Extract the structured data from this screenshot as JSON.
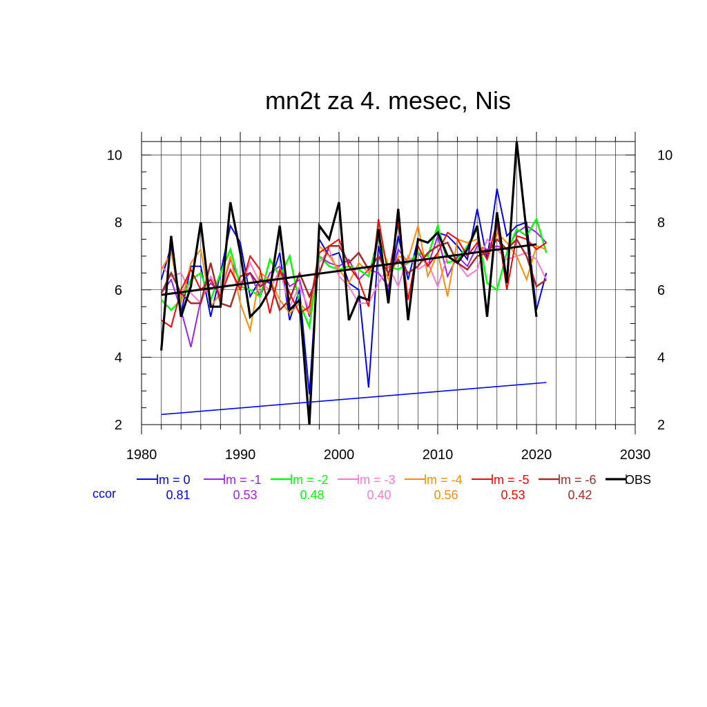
{
  "chart_data": {
    "type": "line",
    "title": "mn2t za 4. mesec, Nis",
    "xlabel": "",
    "ylabel": "",
    "xlim": [
      1980,
      2030
    ],
    "ylim": [
      2,
      10.4
    ],
    "x_ticks": [
      "1980",
      "1990",
      "2000",
      "2010",
      "2020",
      "2030"
    ],
    "y_ticks": [
      "2",
      "4",
      "6",
      "8",
      "10"
    ],
    "grid": true,
    "legend_position": "bottom",
    "ccor_label": "ccor",
    "ccor_color": "#0000ff",
    "x": [
      1982,
      1983,
      1984,
      1985,
      1986,
      1987,
      1988,
      1989,
      1990,
      1991,
      1992,
      1993,
      1994,
      1995,
      1996,
      1997,
      1998,
      1999,
      2000,
      2001,
      2002,
      2003,
      2004,
      2005,
      2006,
      2007,
      2008,
      2009,
      2010,
      2011,
      2012,
      2013,
      2014,
      2015,
      2016,
      2017,
      2018,
      2019,
      2020,
      2021
    ],
    "series": [
      {
        "name": "lm = 0",
        "ccor": "0.81",
        "color": "#0000ff",
        "width": 2,
        "values": [
          6.3,
          7.3,
          5.3,
          6.7,
          6.7,
          5.2,
          6.5,
          7.9,
          7.4,
          5.8,
          6.3,
          6.2,
          7.1,
          5.1,
          6.0,
          2.9,
          7.5,
          7.0,
          7.1,
          6.2,
          6.0,
          3.1,
          7.3,
          5.9,
          7.6,
          6.3,
          7.5,
          7.4,
          7.7,
          7.6,
          7.3,
          6.9,
          8.4,
          6.9,
          9.0,
          7.6,
          7.9,
          8.0,
          5.4,
          6.5
        ]
      },
      {
        "name": "lm = -1",
        "ccor": "0.53",
        "color": "#a020f0",
        "width": 2,
        "values": [
          5.9,
          6.3,
          5.4,
          4.3,
          5.7,
          6.2,
          5.9,
          6.9,
          6.2,
          6.5,
          5.8,
          6.5,
          6.7,
          6.1,
          6.3,
          5.2,
          7.0,
          6.8,
          6.7,
          6.9,
          6.3,
          6.6,
          6.5,
          6.1,
          7.2,
          6.8,
          7.1,
          6.7,
          7.6,
          6.4,
          7.0,
          6.7,
          7.3,
          7.2,
          7.3,
          7.2,
          7.7,
          7.9,
          7.7,
          7.4
        ]
      },
      {
        "name": "lm = -2",
        "ccor": "0.48",
        "color": "#00ff00",
        "width": 2.5,
        "values": [
          5.7,
          5.4,
          5.7,
          6.3,
          6.5,
          5.7,
          6.5,
          7.2,
          6.1,
          6.0,
          5.8,
          6.9,
          6.4,
          7.0,
          5.6,
          4.9,
          7.0,
          6.7,
          6.6,
          6.7,
          6.6,
          6.4,
          7.6,
          6.7,
          6.6,
          6.8,
          7.1,
          7.0,
          7.9,
          6.8,
          6.9,
          7.3,
          7.8,
          6.2,
          6.0,
          7.1,
          7.8,
          7.6,
          8.1,
          7.1
        ]
      },
      {
        "name": "lm = -3",
        "ccor": "0.40",
        "color": "#ff77cc",
        "width": 2,
        "values": [
          6.7,
          6.4,
          6.5,
          5.9,
          5.6,
          6.4,
          5.9,
          6.6,
          6.1,
          6.8,
          6.2,
          6.0,
          6.6,
          5.5,
          6.1,
          5.4,
          6.8,
          7.2,
          6.4,
          6.1,
          5.6,
          5.6,
          6.2,
          6.7,
          6.1,
          7.0,
          6.6,
          6.8,
          6.1,
          7.0,
          6.8,
          6.4,
          6.6,
          7.5,
          7.2,
          6.9,
          7.0,
          7.1,
          6.9,
          6.3
        ]
      },
      {
        "name": "lm = -4",
        "ccor": "0.56",
        "color": "#ff8c00",
        "width": 2,
        "values": [
          6.6,
          7.1,
          5.6,
          6.8,
          7.2,
          5.5,
          5.9,
          7.0,
          5.6,
          4.8,
          6.5,
          6.3,
          5.7,
          5.3,
          5.6,
          5.3,
          7.3,
          7.0,
          6.6,
          6.2,
          6.8,
          6.5,
          7.0,
          6.3,
          7.0,
          6.9,
          7.9,
          6.4,
          7.1,
          5.8,
          7.5,
          7.4,
          7.5,
          6.9,
          7.7,
          7.4,
          7.0,
          6.3,
          7.3,
          7.2
        ]
      },
      {
        "name": "lm = -5",
        "ccor": "0.53",
        "color": "#ff0000",
        "width": 2,
        "values": [
          5.1,
          4.9,
          6.0,
          6.6,
          6.0,
          6.3,
          5.8,
          6.6,
          6.0,
          7.0,
          6.6,
          5.3,
          6.6,
          5.9,
          5.3,
          5.5,
          7.1,
          7.3,
          7.5,
          6.7,
          6.3,
          5.5,
          8.1,
          6.4,
          8.0,
          5.7,
          7.3,
          6.7,
          7.1,
          7.7,
          7.5,
          7.0,
          7.4,
          6.9,
          8.0,
          6.0,
          7.6,
          7.5,
          7.2,
          7.4
        ]
      },
      {
        "name": "lm = -6",
        "ccor": "0.42",
        "color": "#a52a2a",
        "width": 2.5,
        "values": [
          5.9,
          6.5,
          5.9,
          5.6,
          5.6,
          6.8,
          5.6,
          5.5,
          6.4,
          6.5,
          6.1,
          6.3,
          5.4,
          5.7,
          6.5,
          5.8,
          6.5,
          7.3,
          7.3,
          6.8,
          7.1,
          6.6,
          7.0,
          6.5,
          6.9,
          6.5,
          6.7,
          7.1,
          7.3,
          7.4,
          6.8,
          6.6,
          7.0,
          7.1,
          7.5,
          7.2,
          7.5,
          7.0,
          6.1,
          6.3
        ]
      },
      {
        "name": "OBS",
        "color": "#000000",
        "width": 3.2,
        "values": [
          4.2,
          7.6,
          5.2,
          6.1,
          8.0,
          5.5,
          5.5,
          8.6,
          7.1,
          5.2,
          5.5,
          6.0,
          7.9,
          5.4,
          5.7,
          2.0,
          7.9,
          7.5,
          8.6,
          5.1,
          5.8,
          5.7,
          7.8,
          5.6,
          8.4,
          5.1,
          7.5,
          7.4,
          7.7,
          7.0,
          6.8,
          7.2,
          7.9,
          5.2,
          8.3,
          6.2,
          10.4,
          7.7,
          5.2,
          null
        ]
      }
    ],
    "trends": [
      {
        "series": "OBS",
        "color": "#000000",
        "width": 3,
        "x": [
          1982,
          2020
        ],
        "y": [
          5.85,
          7.35
        ]
      },
      {
        "series": "lm = 0",
        "color": "#0000ff",
        "width": 1.6,
        "x": [
          1982,
          2021
        ],
        "y": [
          2.3,
          3.25
        ]
      }
    ]
  }
}
